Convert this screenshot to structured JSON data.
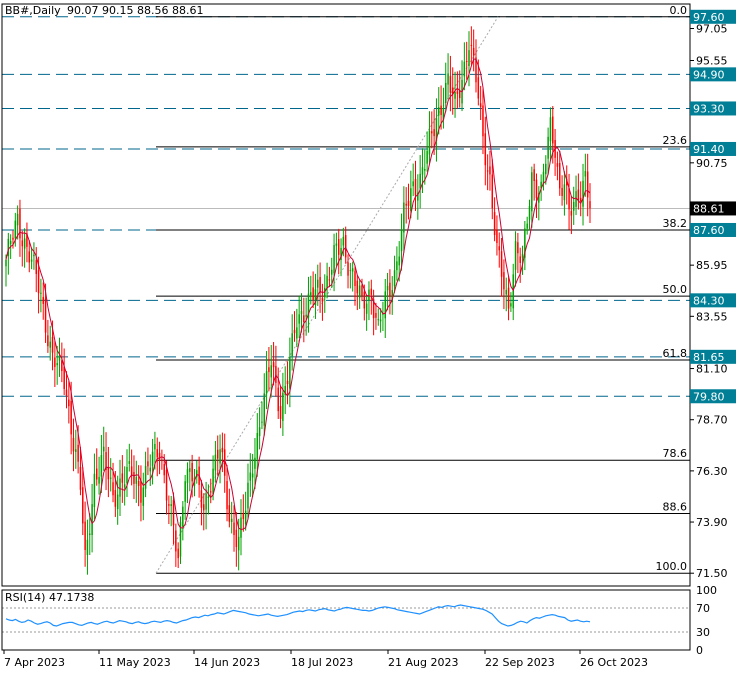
{
  "header": {
    "symbol": "BB#,Daily",
    "ohlc": "90.07 90.15 88.56 88.61"
  },
  "colors": {
    "bull": "#00a000",
    "bear": "#ff0000",
    "ma": "#cc0033",
    "level": "#00668c",
    "fib": "#000000",
    "rsi": "#1e90ff",
    "price_label_bg": "#000000",
    "level_label_bg": "#007f96"
  },
  "chart_data": {
    "type": "candlestick",
    "ylim": [
      70.9,
      98.2
    ],
    "y_ticks": [
      "97.05",
      "95.55",
      "94.90",
      "93.30",
      "91.40",
      "90.75",
      "88.61",
      "87.60",
      "85.95",
      "84.30",
      "83.55",
      "81.65",
      "81.10",
      "79.80",
      "78.70",
      "76.30",
      "73.90",
      "71.50"
    ],
    "x_labels": [
      "7 Apr 2023",
      "11 May 2023",
      "14 Jun 2023",
      "18 Jul 2023",
      "21 Aug 2023",
      "22 Sep 2023",
      "26 Oct 2023"
    ],
    "levels": [
      {
        "value": 97.6,
        "label": "97.60"
      },
      {
        "value": 94.9,
        "label": "94.90"
      },
      {
        "value": 93.3,
        "label": "93.30"
      },
      {
        "value": 91.4,
        "label": "91.40"
      },
      {
        "value": 87.6,
        "label": "87.60"
      },
      {
        "value": 84.3,
        "label": "84.30"
      },
      {
        "value": 81.65,
        "label": "81.65"
      },
      {
        "value": 79.8,
        "label": "79.80"
      }
    ],
    "fib_levels": [
      {
        "value": 97.6,
        "label": "0.0"
      },
      {
        "value": 91.5,
        "label": "23.6"
      },
      {
        "value": 87.6,
        "label": "38.2"
      },
      {
        "value": 84.5,
        "label": "50.0"
      },
      {
        "value": 81.5,
        "label": "61.8"
      },
      {
        "value": 76.8,
        "label": "78.6"
      },
      {
        "value": 74.3,
        "label": "88.6"
      },
      {
        "value": 71.5,
        "label": "100.0"
      }
    ],
    "current_price": {
      "value": 88.61,
      "label": "88.61"
    },
    "anchors": [
      [
        0,
        86.2
      ],
      [
        5,
        88.0
      ],
      [
        10,
        86.5
      ],
      [
        15,
        84.5
      ],
      [
        20,
        81.6
      ],
      [
        25,
        80.6
      ],
      [
        28,
        78.5
      ],
      [
        32,
        75.5
      ],
      [
        34,
        72.0
      ],
      [
        38,
        76.0
      ],
      [
        42,
        76.8
      ],
      [
        46,
        75.2
      ],
      [
        50,
        75.8
      ],
      [
        54,
        76.2
      ],
      [
        58,
        75.5
      ],
      [
        62,
        76.6
      ],
      [
        66,
        77.4
      ],
      [
        70,
        74.8
      ],
      [
        74,
        72.0
      ],
      [
        77,
        76.5
      ],
      [
        81,
        76.0
      ],
      [
        85,
        74.5
      ],
      [
        88,
        76.0
      ],
      [
        92,
        77.3
      ],
      [
        96,
        74.2
      ],
      [
        100,
        73.0
      ],
      [
        103,
        74.5
      ],
      [
        106,
        76.8
      ],
      [
        110,
        79.0
      ],
      [
        114,
        81.5
      ],
      [
        118,
        79.2
      ],
      [
        121,
        80.6
      ],
      [
        125,
        83.5
      ],
      [
        129,
        84.0
      ],
      [
        133,
        84.6
      ],
      [
        137,
        85.0
      ],
      [
        141,
        86.3
      ],
      [
        145,
        86.9
      ],
      [
        149,
        85.5
      ],
      [
        153,
        84.0
      ],
      [
        157,
        84.8
      ],
      [
        160,
        82.9
      ],
      [
        163,
        84.2
      ],
      [
        167,
        85.6
      ],
      [
        171,
        88.2
      ],
      [
        175,
        89.6
      ],
      [
        178,
        90.1
      ],
      [
        182,
        91.5
      ],
      [
        186,
        93.2
      ],
      [
        190,
        94.6
      ],
      [
        193,
        93.4
      ],
      [
        196,
        94.8
      ],
      [
        199,
        96.5
      ],
      [
        202,
        94.6
      ],
      [
        205,
        92.0
      ],
      [
        208,
        90.0
      ],
      [
        211,
        86.5
      ],
      [
        214,
        85.0
      ],
      [
        216,
        84.0
      ],
      [
        219,
        86.7
      ],
      [
        222,
        86.0
      ],
      [
        226,
        90.2
      ],
      [
        230,
        89.3
      ],
      [
        234,
        92.4
      ],
      [
        236,
        91.6
      ],
      [
        238,
        89.5
      ],
      [
        240,
        89.8
      ],
      [
        242,
        88.2
      ],
      [
        246,
        89.4
      ],
      [
        249,
        90.1
      ],
      [
        251,
        88.6
      ]
    ],
    "rsi": {
      "label": "RSI(14) 47.1738",
      "ylim": [
        0,
        100
      ],
      "ticks": [
        "100",
        "70",
        "30",
        "0"
      ],
      "levels": [
        70,
        30
      ],
      "values": [
        52,
        50,
        49,
        51,
        48,
        46,
        47,
        50,
        48,
        45,
        43,
        44,
        46,
        47,
        45,
        41,
        40,
        42,
        44,
        45,
        46,
        46,
        44,
        42,
        41,
        43,
        45,
        46,
        44,
        43,
        45,
        47,
        48,
        46,
        45,
        47,
        49,
        48,
        47,
        45,
        44,
        46,
        47,
        45,
        44,
        45,
        47,
        48,
        47,
        46,
        48,
        49,
        48,
        46,
        45,
        47,
        49,
        50,
        52,
        54,
        55,
        54,
        56,
        58,
        57,
        59,
        60,
        62,
        61,
        60,
        62,
        64,
        66,
        65,
        64,
        63,
        62,
        60,
        59,
        58,
        57,
        58,
        59,
        60,
        58,
        57,
        56,
        57,
        58,
        59,
        61,
        63,
        64,
        65,
        64,
        66,
        67,
        66,
        65,
        67,
        68,
        69,
        67,
        66,
        65,
        67,
        68,
        70,
        71,
        70,
        69,
        68,
        67,
        66,
        66,
        65,
        66,
        68,
        70,
        71,
        72,
        71,
        70,
        69,
        67,
        66,
        65,
        64,
        63,
        62,
        61,
        60,
        62,
        64,
        66,
        68,
        70,
        72,
        71,
        73,
        74,
        73,
        72,
        74,
        75,
        74,
        73,
        72,
        71,
        70,
        69,
        68,
        66,
        63,
        60,
        54,
        48,
        44,
        42,
        40,
        41,
        43,
        46,
        48,
        47,
        45,
        49,
        52,
        54,
        53,
        55,
        57,
        58,
        59,
        58,
        56,
        55,
        54,
        50,
        48,
        49,
        50,
        48,
        47,
        48,
        47
      ]
    }
  }
}
